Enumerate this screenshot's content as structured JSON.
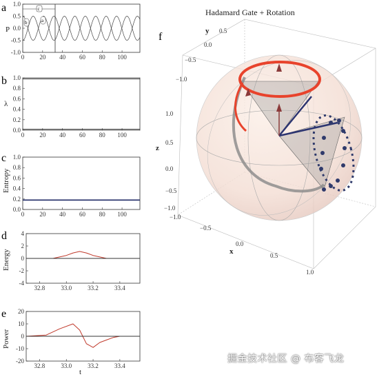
{
  "figure": {
    "panels": {
      "a": {
        "letter": "a",
        "ylabel": "P"
      },
      "b": {
        "letter": "b",
        "ylabel": "λ"
      },
      "c": {
        "letter": "c",
        "ylabel": "Entropy"
      },
      "d": {
        "letter": "d",
        "ylabel": "Energy"
      },
      "e": {
        "letter": "e",
        "ylabel": "Power",
        "xlabel": "t"
      },
      "f": {
        "letter": "f",
        "title": "Hadamard Gate + Rotation",
        "axis_x": "x",
        "axis_y": "y",
        "axis_z": "z"
      }
    },
    "watermark": "掘金技术社区 @ 布客飞龙"
  },
  "chart_data": [
    {
      "id": "a",
      "type": "line",
      "ylabel": "P",
      "ylim": [
        -1.0,
        1.0
      ],
      "xlim": [
        0,
        118
      ],
      "xticks": [
        0,
        20,
        40,
        60,
        80,
        100
      ],
      "yticks": [
        "1.0",
        "0.5",
        "0.0",
        "-0.5",
        "-1.0"
      ],
      "series": [
        {
          "amplitude": 0.5,
          "offset": 0.0,
          "period": 21,
          "phase": 0
        },
        {
          "amplitude": 0.5,
          "offset": 0.0,
          "period": 21,
          "phase": 3.14
        }
      ],
      "annotations": [
        "c",
        "b",
        "a"
      ],
      "vline_x": 33
    },
    {
      "id": "b",
      "type": "line",
      "ylabel": "λ",
      "ylim": [
        0,
        1.0
      ],
      "xlim": [
        0,
        118
      ],
      "xticks": [
        0,
        20,
        40,
        60,
        80,
        100
      ],
      "yticks": [
        "1.0",
        "0.8",
        "0.6",
        "0.4",
        "0.2",
        "0.0"
      ],
      "series": [
        {
          "values_const": 0.98
        },
        {
          "values_const": 0.02
        }
      ]
    },
    {
      "id": "c",
      "type": "line",
      "ylabel": "Entropy",
      "ylim": [
        0,
        1.0
      ],
      "xlim": [
        0,
        118
      ],
      "xticks": [
        0,
        20,
        40,
        60,
        80,
        100
      ],
      "yticks": [
        "1.0",
        "0.8",
        "0.6",
        "0.4",
        "0.2",
        "0.0"
      ],
      "series": [
        {
          "values_const": 0.18
        }
      ]
    },
    {
      "id": "d",
      "type": "line",
      "ylabel": "Energy",
      "ylim": [
        -5,
        5
      ],
      "xlim": [
        32.7,
        33.55
      ],
      "xticks": [
        "32.8",
        "33.0",
        "33.2",
        "33.4"
      ],
      "yticks": [
        "4",
        "2",
        "0",
        "-2",
        "-4"
      ],
      "series": [
        {
          "color": "#c0392b",
          "x": [
            32.7,
            32.9,
            33.0,
            33.05,
            33.1,
            33.15,
            33.2,
            33.3,
            33.55
          ],
          "y": [
            0,
            0,
            0.6,
            1.1,
            1.4,
            1.1,
            0.6,
            0,
            0
          ]
        },
        {
          "color": "#333333",
          "x": [
            32.7,
            33.55
          ],
          "y": [
            0,
            0
          ]
        }
      ]
    },
    {
      "id": "e",
      "type": "line",
      "ylabel": "Power",
      "xlabel": "t",
      "ylim": [
        -20,
        20
      ],
      "xlim": [
        32.7,
        33.55
      ],
      "xticks": [
        "32.8",
        "33.0",
        "33.2",
        "33.4"
      ],
      "yticks": [
        "20",
        "10",
        "0",
        "-10",
        "-20"
      ],
      "series": [
        {
          "color": "#c0392b",
          "x": [
            32.7,
            32.85,
            32.95,
            33.05,
            33.1,
            33.15,
            33.2,
            33.25,
            33.3,
            33.35,
            33.4,
            33.55
          ],
          "y": [
            0,
            1,
            6,
            10,
            5,
            -6,
            -9,
            -5,
            -3,
            -1,
            0,
            0
          ]
        },
        {
          "color": "#333333",
          "x": [
            32.7,
            33.55
          ],
          "y": [
            0,
            0
          ]
        }
      ]
    },
    {
      "id": "f",
      "type": "scatter",
      "title": "Hadamard Gate + Rotation",
      "x_ticks": [
        "−1.0",
        "−0.5",
        "0.0",
        "0.5",
        "1.0"
      ],
      "y_ticks": [
        "−1.0",
        "−0.5",
        "0.0",
        "0.5"
      ],
      "z_ticks": [
        "1.0",
        "0.5",
        "0.0",
        "−0.5",
        "−1.0"
      ],
      "x_label": "x",
      "y_label": "y",
      "z_label": "z"
    }
  ]
}
